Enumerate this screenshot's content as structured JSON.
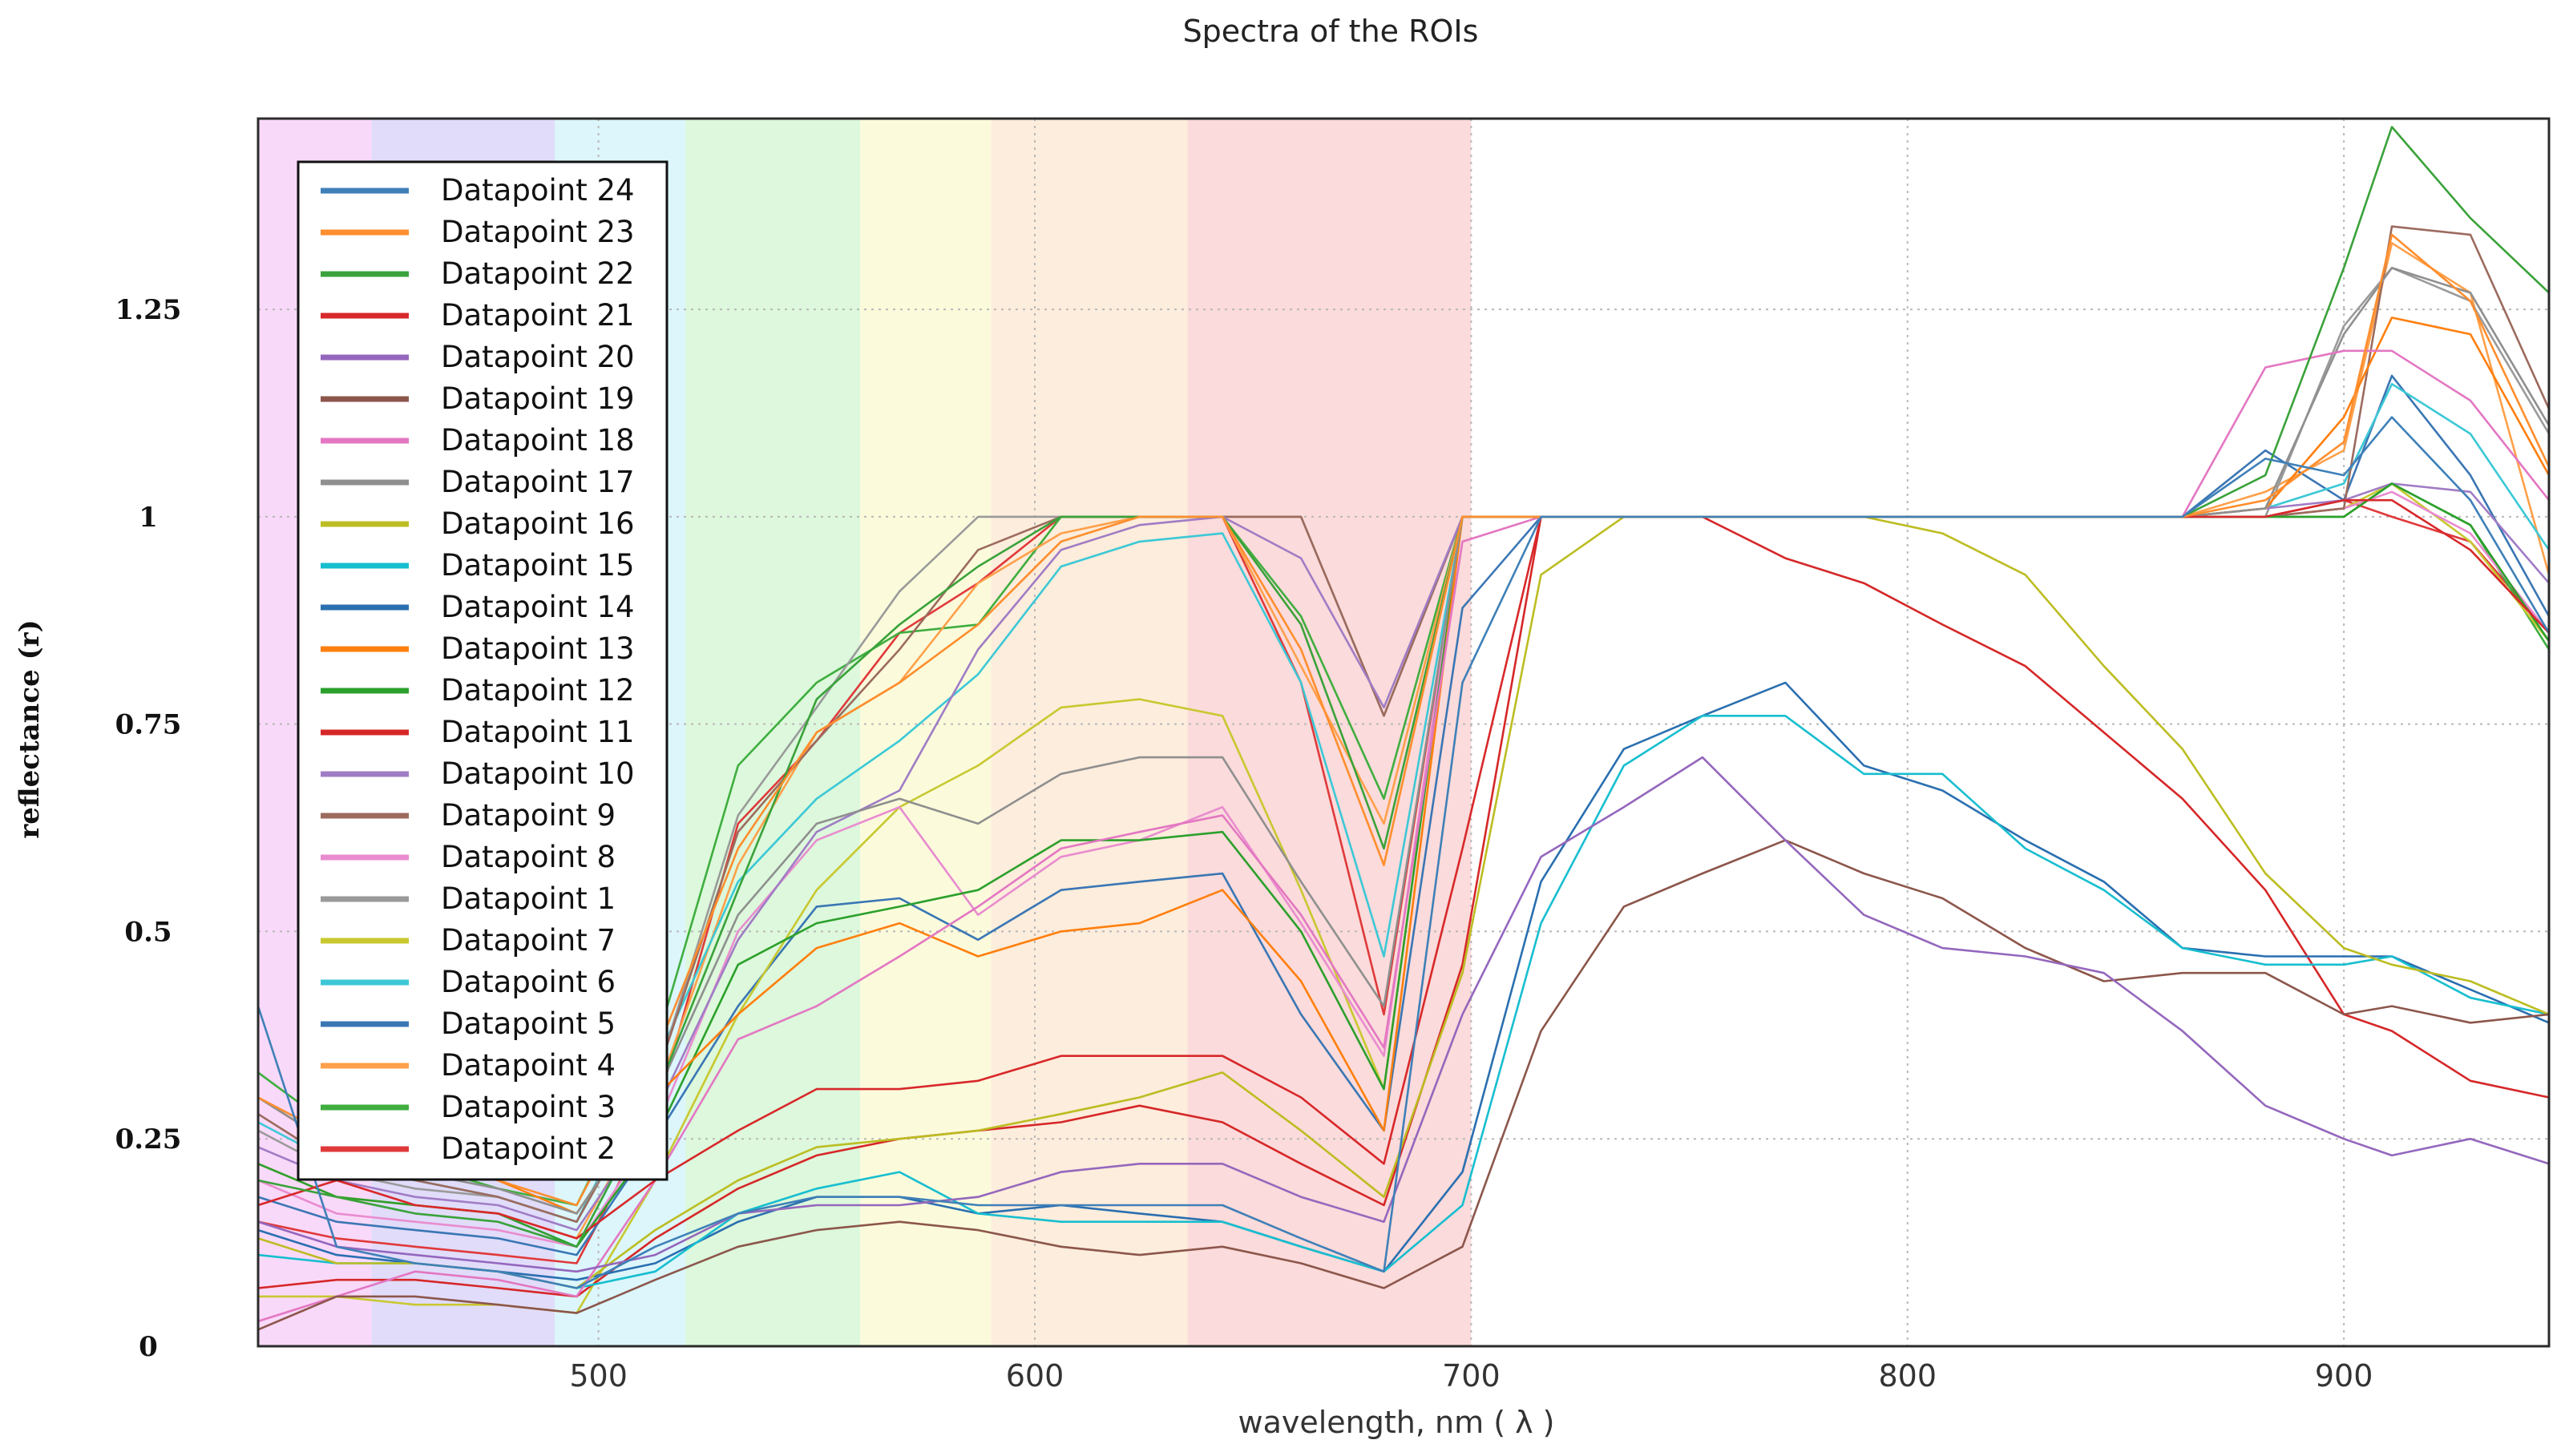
{
  "chart_data": {
    "type": "line",
    "title": "Spectra of the ROIs",
    "xlabel": "wavelength, nm ( λ )",
    "ylabel": "reflectance (r)",
    "xlim": [
      422,
      947
    ],
    "ylim": [
      0,
      1.48
    ],
    "xticks": [
      500,
      600,
      700,
      800,
      900
    ],
    "yticks": [
      0,
      0.25,
      0.5,
      0.75,
      1,
      1.25
    ],
    "ytick_labels": [
      "0",
      "0.25",
      "0.5",
      "0.75",
      "1",
      "1.25"
    ],
    "grid": true,
    "legend_position": "top-left",
    "bands": [
      {
        "from": 422,
        "to": 448,
        "color": "#f9d9f9"
      },
      {
        "from": 448,
        "to": 490,
        "color": "#e1dcfa"
      },
      {
        "from": 490,
        "to": 520,
        "color": "#dcf6fb"
      },
      {
        "from": 520,
        "to": 560,
        "color": "#ddf8dc"
      },
      {
        "from": 560,
        "to": 590,
        "color": "#fbfbdc"
      },
      {
        "from": 590,
        "to": 635,
        "color": "#fdeddc"
      },
      {
        "from": 635,
        "to": 700,
        "color": "#fbdbdb"
      }
    ],
    "x": [
      422,
      440,
      458,
      477,
      495,
      513,
      532,
      550,
      569,
      587,
      606,
      624,
      643,
      661,
      680,
      698,
      716,
      735,
      753,
      772,
      790,
      808,
      827,
      845,
      863,
      882,
      900,
      911,
      929,
      947
    ],
    "series": [
      {
        "name": "Datapoint 24",
        "color": "#3f80b8",
        "values": [
          0.41,
          0.12,
          0.1,
          0.09,
          0.07,
          0.12,
          0.16,
          0.18,
          0.18,
          0.17,
          0.17,
          0.17,
          0.17,
          0.13,
          0.09,
          0.8,
          1.0,
          1.0,
          1.0,
          1.0,
          1.0,
          1.0,
          1.0,
          1.0,
          1.0,
          1.07,
          1.05,
          1.12,
          1.02,
          0.86
        ]
      },
      {
        "name": "Datapoint 23",
        "color": "#ff8e2e",
        "values": [
          0.3,
          0.25,
          0.22,
          0.2,
          0.17,
          0.35,
          0.6,
          0.74,
          0.8,
          0.87,
          0.97,
          1.0,
          1.0,
          0.84,
          0.58,
          1.0,
          1.0,
          1.0,
          1.0,
          1.0,
          1.0,
          1.0,
          1.0,
          1.0,
          1.0,
          1.02,
          1.09,
          1.34,
          1.26,
          1.06
        ]
      },
      {
        "name": "Datapoint 22",
        "color": "#3aa23a",
        "values": [
          0.2,
          0.18,
          0.16,
          0.15,
          0.12,
          0.3,
          0.55,
          0.78,
          0.87,
          0.94,
          1.0,
          1.0,
          1.0,
          0.87,
          0.6,
          1.0,
          1.0,
          1.0,
          1.0,
          1.0,
          1.0,
          1.0,
          1.0,
          1.0,
          1.0,
          1.05,
          1.3,
          1.47,
          1.36,
          1.27
        ]
      },
      {
        "name": "Datapoint 21",
        "color": "#d8282a",
        "values": [
          0.17,
          0.2,
          0.17,
          0.16,
          0.13,
          0.2,
          0.26,
          0.31,
          0.31,
          0.32,
          0.35,
          0.35,
          0.35,
          0.3,
          0.22,
          0.6,
          1.0,
          1.0,
          1.0,
          1.0,
          1.0,
          1.0,
          1.0,
          1.0,
          1.0,
          1.0,
          1.02,
          1.02,
          0.96,
          0.86
        ]
      },
      {
        "name": "Datapoint 20",
        "color": "#9467bd",
        "values": [
          0.15,
          0.12,
          0.11,
          0.1,
          0.09,
          0.11,
          0.16,
          0.17,
          0.17,
          0.18,
          0.21,
          0.22,
          0.22,
          0.18,
          0.15,
          0.4,
          0.59,
          0.65,
          0.71,
          0.61,
          0.52,
          0.48,
          0.47,
          0.45,
          0.38,
          0.29,
          0.25,
          0.23,
          0.25,
          0.22
        ]
      },
      {
        "name": "Datapoint 19",
        "color": "#8c564b",
        "values": [
          0.02,
          0.06,
          0.06,
          0.05,
          0.04,
          0.08,
          0.12,
          0.14,
          0.15,
          0.14,
          0.12,
          0.11,
          0.12,
          0.1,
          0.07,
          0.12,
          0.38,
          0.53,
          0.57,
          0.61,
          0.57,
          0.54,
          0.48,
          0.44,
          0.45,
          0.45,
          0.4,
          0.41,
          0.39,
          0.4
        ]
      },
      {
        "name": "Datapoint 18",
        "color": "#e377c2",
        "values": [
          0.03,
          0.06,
          0.09,
          0.08,
          0.06,
          0.2,
          0.37,
          0.41,
          0.47,
          0.53,
          0.6,
          0.62,
          0.64,
          0.52,
          0.36,
          0.97,
          1.0,
          1.0,
          1.0,
          1.0,
          1.0,
          1.0,
          1.0,
          1.0,
          1.0,
          1.18,
          1.2,
          1.2,
          1.14,
          1.02
        ]
      },
      {
        "name": "Datapoint 17",
        "color": "#8f8f8f",
        "values": [
          0.3,
          0.24,
          0.21,
          0.19,
          0.16,
          0.3,
          0.52,
          0.63,
          0.66,
          0.63,
          0.69,
          0.71,
          0.71,
          0.56,
          0.41,
          1.0,
          1.0,
          1.0,
          1.0,
          1.0,
          1.0,
          1.0,
          1.0,
          1.0,
          1.0,
          1.01,
          1.22,
          1.3,
          1.27,
          1.11
        ]
      },
      {
        "name": "Datapoint 16",
        "color": "#bcbd22",
        "values": [
          0.13,
          0.1,
          0.1,
          0.09,
          0.07,
          0.14,
          0.2,
          0.24,
          0.25,
          0.26,
          0.28,
          0.3,
          0.33,
          0.26,
          0.18,
          0.45,
          0.93,
          1.0,
          1.0,
          1.0,
          1.0,
          0.98,
          0.93,
          0.82,
          0.72,
          0.57,
          0.48,
          0.46,
          0.44,
          0.4
        ]
      },
      {
        "name": "Datapoint 15",
        "color": "#17becf",
        "values": [
          0.11,
          0.1,
          0.1,
          0.09,
          0.07,
          0.09,
          0.16,
          0.19,
          0.21,
          0.16,
          0.15,
          0.15,
          0.15,
          0.12,
          0.09,
          0.17,
          0.51,
          0.7,
          0.76,
          0.76,
          0.69,
          0.69,
          0.6,
          0.55,
          0.48,
          0.46,
          0.46,
          0.47,
          0.42,
          0.4
        ]
      },
      {
        "name": "Datapoint 14",
        "color": "#2a6fb0",
        "values": [
          0.14,
          0.11,
          0.1,
          0.09,
          0.08,
          0.1,
          0.15,
          0.18,
          0.18,
          0.16,
          0.17,
          0.16,
          0.15,
          0.12,
          0.09,
          0.21,
          0.56,
          0.72,
          0.76,
          0.8,
          0.7,
          0.67,
          0.61,
          0.56,
          0.48,
          0.47,
          0.47,
          0.47,
          0.43,
          0.39
        ]
      },
      {
        "name": "Datapoint 13",
        "color": "#ff7f0e",
        "values": [
          0.3,
          0.24,
          0.22,
          0.2,
          0.16,
          0.3,
          0.4,
          0.48,
          0.51,
          0.47,
          0.5,
          0.51,
          0.55,
          0.44,
          0.26,
          1.0,
          1.0,
          1.0,
          1.0,
          1.0,
          1.0,
          1.0,
          1.0,
          1.0,
          1.0,
          1.01,
          1.12,
          1.24,
          1.22,
          1.05
        ]
      },
      {
        "name": "Datapoint 12",
        "color": "#2ca02c",
        "values": [
          0.22,
          0.18,
          0.17,
          0.16,
          0.12,
          0.25,
          0.46,
          0.51,
          0.53,
          0.55,
          0.61,
          0.61,
          0.62,
          0.5,
          0.31,
          1.0,
          1.0,
          1.0,
          1.0,
          1.0,
          1.0,
          1.0,
          1.0,
          1.0,
          1.0,
          1.0,
          1.0,
          1.04,
          0.99,
          0.85
        ]
      },
      {
        "name": "Datapoint 11",
        "color": "#d62728",
        "values": [
          0.07,
          0.08,
          0.08,
          0.07,
          0.06,
          0.13,
          0.19,
          0.23,
          0.25,
          0.26,
          0.27,
          0.29,
          0.27,
          0.22,
          0.17,
          0.46,
          1.0,
          1.0,
          1.0,
          0.95,
          0.92,
          0.87,
          0.82,
          0.74,
          0.66,
          0.55,
          0.4,
          0.38,
          0.32,
          0.3
        ]
      },
      {
        "name": "Datapoint 10",
        "color": "#a07cc5",
        "values": [
          0.24,
          0.2,
          0.18,
          0.17,
          0.14,
          0.28,
          0.49,
          0.62,
          0.67,
          0.84,
          0.96,
          0.99,
          1.0,
          0.95,
          0.77,
          1.0,
          1.0,
          1.0,
          1.0,
          1.0,
          1.0,
          1.0,
          1.0,
          1.0,
          1.0,
          1.01,
          1.02,
          1.04,
          1.03,
          0.92
        ]
      },
      {
        "name": "Datapoint 9",
        "color": "#9c6b5e",
        "values": [
          0.28,
          0.22,
          0.2,
          0.18,
          0.15,
          0.32,
          0.62,
          0.73,
          0.84,
          0.96,
          1.0,
          1.0,
          1.0,
          1.0,
          0.76,
          1.0,
          1.0,
          1.0,
          1.0,
          1.0,
          1.0,
          1.0,
          1.0,
          1.0,
          1.0,
          1.0,
          1.01,
          1.35,
          1.34,
          1.13
        ]
      },
      {
        "name": "Datapoint 8",
        "color": "#e98ccf",
        "values": [
          0.2,
          0.16,
          0.15,
          0.14,
          0.12,
          0.26,
          0.5,
          0.61,
          0.65,
          0.52,
          0.59,
          0.61,
          0.65,
          0.51,
          0.35,
          1.0,
          1.0,
          1.0,
          1.0,
          1.0,
          1.0,
          1.0,
          1.0,
          1.0,
          1.0,
          1.0,
          1.01,
          1.03,
          0.98,
          0.86
        ]
      },
      {
        "name": "Datapoint 1",
        "color": "#9a9a9a",
        "values": [
          0.26,
          0.21,
          0.19,
          0.18,
          0.15,
          0.32,
          0.64,
          0.77,
          0.91,
          1.0,
          1.0,
          1.0,
          1.0,
          1.0,
          0.76,
          1.0,
          1.0,
          1.0,
          1.0,
          1.0,
          1.0,
          1.0,
          1.0,
          1.0,
          1.0,
          1.0,
          1.23,
          1.3,
          1.26,
          1.1
        ]
      },
      {
        "name": "Datapoint 7",
        "color": "#c8c830",
        "values": [
          0.06,
          0.06,
          0.05,
          0.05,
          0.04,
          0.2,
          0.4,
          0.55,
          0.65,
          0.7,
          0.77,
          0.78,
          0.76,
          0.55,
          0.31,
          1.0,
          1.0,
          1.0,
          1.0,
          1.0,
          1.0,
          1.0,
          1.0,
          1.0,
          1.0,
          1.0,
          1.01,
          1.04,
          0.97,
          0.85
        ]
      },
      {
        "name": "Datapoint 6",
        "color": "#3cc8d6",
        "values": [
          0.27,
          0.22,
          0.2,
          0.18,
          0.15,
          0.34,
          0.56,
          0.66,
          0.73,
          0.81,
          0.94,
          0.97,
          0.98,
          0.8,
          0.47,
          1.0,
          1.0,
          1.0,
          1.0,
          1.0,
          1.0,
          1.0,
          1.0,
          1.0,
          1.0,
          1.01,
          1.04,
          1.16,
          1.1,
          0.96
        ]
      },
      {
        "name": "Datapoint 5",
        "color": "#3a76b4",
        "values": [
          0.18,
          0.15,
          0.14,
          0.13,
          0.11,
          0.25,
          0.41,
          0.53,
          0.54,
          0.49,
          0.55,
          0.56,
          0.57,
          0.4,
          0.26,
          0.89,
          1.0,
          1.0,
          1.0,
          1.0,
          1.0,
          1.0,
          1.0,
          1.0,
          1.0,
          1.08,
          1.02,
          1.17,
          1.05,
          0.88
        ]
      },
      {
        "name": "Datapoint 4",
        "color": "#ffa04a",
        "values": [
          0.22,
          0.18,
          0.17,
          0.16,
          0.13,
          0.3,
          0.58,
          0.74,
          0.8,
          0.92,
          0.98,
          1.0,
          1.0,
          0.82,
          0.63,
          1.0,
          1.0,
          1.0,
          1.0,
          1.0,
          1.0,
          1.0,
          1.0,
          1.0,
          1.0,
          1.03,
          1.08,
          1.33,
          1.27,
          0.93
        ]
      },
      {
        "name": "Datapoint 3",
        "color": "#3fae3f",
        "values": [
          0.33,
          0.26,
          0.22,
          0.19,
          0.17,
          0.36,
          0.7,
          0.8,
          0.86,
          0.87,
          1.0,
          1.0,
          1.0,
          0.88,
          0.66,
          1.0,
          1.0,
          1.0,
          1.0,
          1.0,
          1.0,
          1.0,
          1.0,
          1.0,
          1.0,
          1.0,
          1.0,
          1.04,
          0.99,
          0.84
        ]
      },
      {
        "name": "Datapoint 2",
        "color": "#e0393a",
        "values": [
          0.15,
          0.13,
          0.12,
          0.11,
          0.1,
          0.28,
          0.63,
          0.73,
          0.86,
          0.92,
          1.0,
          1.0,
          1.0,
          0.8,
          0.4,
          1.0,
          1.0,
          1.0,
          1.0,
          1.0,
          1.0,
          1.0,
          1.0,
          1.0,
          1.0,
          1.0,
          1.02,
          1.0,
          0.97,
          0.86
        ]
      }
    ]
  }
}
